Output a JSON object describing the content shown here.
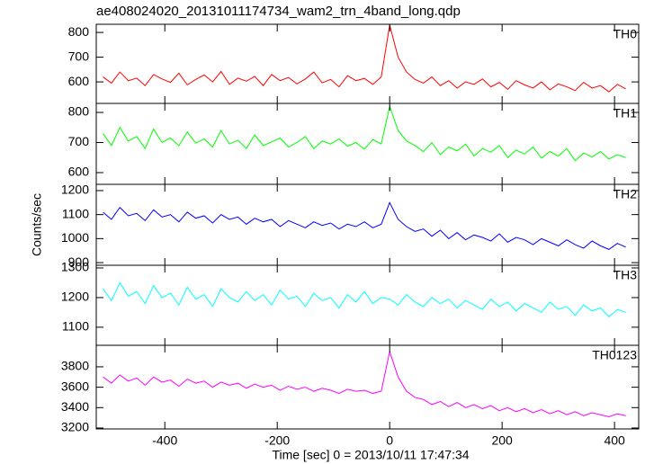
{
  "chart_data": {
    "type": "line",
    "title": "ae408024020_20131011174734_wam2_trn_4band_long.qdp",
    "ylabel": "Counts/sec",
    "xlabel": "Time [sec] 0 = 2013/10/11 17:47:34",
    "xlim": [
      -522,
      443
    ],
    "xticks": [
      -400,
      -200,
      0,
      200,
      400
    ],
    "x": [
      -510,
      -495,
      -480,
      -465,
      -450,
      -435,
      -420,
      -405,
      -390,
      -375,
      -360,
      -345,
      -330,
      -315,
      -300,
      -285,
      -270,
      -255,
      -240,
      -225,
      -210,
      -195,
      -180,
      -165,
      -150,
      -135,
      -120,
      -105,
      -90,
      -75,
      -60,
      -45,
      -30,
      -15,
      0,
      15,
      30,
      45,
      60,
      75,
      90,
      105,
      120,
      135,
      150,
      165,
      180,
      195,
      210,
      225,
      240,
      255,
      270,
      285,
      300,
      315,
      330,
      345,
      360,
      375,
      390,
      405,
      420
    ],
    "series": [
      {
        "name": "TH0",
        "color": "#ff0000",
        "ylim": [
          513,
          833
        ],
        "yticks": [
          600,
          700,
          800
        ],
        "values": [
          620,
          595,
          640,
          605,
          615,
          585,
          630,
          612,
          598,
          635,
          588,
          610,
          628,
          600,
          642,
          590,
          615,
          603,
          622,
          585,
          630,
          605,
          618,
          592,
          612,
          640,
          596,
          610,
          580,
          625,
          605,
          614,
          590,
          620,
          830,
          700,
          640,
          610,
          595,
          620,
          585,
          605,
          575,
          600,
          590,
          612,
          580,
          598,
          570,
          605,
          588,
          575,
          600,
          568,
          592,
          580,
          565,
          598,
          575,
          585,
          560,
          590,
          572
        ]
      },
      {
        "name": "TH1",
        "color": "#00ff00",
        "ylim": [
          561,
          830
        ],
        "yticks": [
          600,
          700,
          800
        ],
        "values": [
          730,
          690,
          750,
          705,
          720,
          680,
          745,
          700,
          715,
          690,
          735,
          698,
          712,
          685,
          740,
          695,
          708,
          680,
          725,
          690,
          702,
          715,
          685,
          700,
          720,
          680,
          705,
          695,
          712,
          688,
          700,
          678,
          710,
          695,
          820,
          740,
          705,
          690,
          670,
          700,
          660,
          685,
          672,
          695,
          655,
          680,
          668,
          690,
          650,
          675,
          662,
          685,
          648,
          670,
          655,
          680,
          640,
          665,
          652,
          670,
          645,
          660,
          650
        ]
      },
      {
        "name": "TH2",
        "color": "#0000ff",
        "ylim": [
          889,
          1226
        ],
        "yticks": [
          900,
          1000,
          1100,
          1200
        ],
        "values": [
          1110,
          1080,
          1130,
          1095,
          1105,
          1075,
          1120,
          1090,
          1100,
          1070,
          1110,
          1085,
          1095,
          1065,
          1100,
          1080,
          1090,
          1060,
          1085,
          1070,
          1080,
          1050,
          1075,
          1060,
          1045,
          1070,
          1055,
          1065,
          1040,
          1060,
          1050,
          1070,
          1045,
          1060,
          1150,
          1080,
          1050,
          1030,
          1040,
          1010,
          1035,
          1000,
          1025,
          995,
          1015,
          1005,
          990,
          1020,
          985,
          1005,
          995,
          975,
          1000,
          985,
          970,
          995,
          975,
          960,
          990,
          970,
          955,
          980,
          965
        ]
      },
      {
        "name": "TH3",
        "color": "#00ffff",
        "ylim": [
          1039,
          1309
        ],
        "yticks": [
          1100,
          1200,
          1300
        ],
        "values": [
          1230,
          1190,
          1250,
          1205,
          1220,
          1180,
          1240,
          1200,
          1215,
          1175,
          1235,
          1195,
          1210,
          1170,
          1230,
          1200,
          1185,
          1220,
          1190,
          1210,
          1175,
          1225,
          1195,
          1205,
          1170,
          1215,
          1190,
          1200,
          1165,
          1210,
          1185,
          1220,
          1180,
          1200,
          1195,
          1175,
          1210,
          1185,
          1170,
          1200,
          1180,
          1195,
          1165,
          1190,
          1175,
          1160,
          1195,
          1170,
          1185,
          1155,
          1180,
          1165,
          1150,
          1185,
          1160,
          1170,
          1140,
          1175,
          1155,
          1165,
          1135,
          1160,
          1150
        ]
      },
      {
        "name": "TH0123",
        "color": "#ff00ff",
        "ylim": [
          3191,
          4011
        ],
        "yticks": [
          3200,
          3400,
          3600,
          3800
        ],
        "values": [
          3700,
          3640,
          3720,
          3660,
          3690,
          3620,
          3700,
          3650,
          3670,
          3610,
          3680,
          3640,
          3660,
          3600,
          3650,
          3620,
          3640,
          3590,
          3630,
          3600,
          3620,
          3570,
          3610,
          3580,
          3600,
          3560,
          3590,
          3570,
          3540,
          3580,
          3560,
          3570,
          3540,
          3560,
          3950,
          3700,
          3560,
          3500,
          3480,
          3430,
          3460,
          3410,
          3450,
          3400,
          3430,
          3390,
          3420,
          3370,
          3400,
          3360,
          3390,
          3350,
          3380,
          3340,
          3370,
          3330,
          3360,
          3320,
          3350,
          3330,
          3310,
          3340,
          3320
        ]
      }
    ]
  }
}
